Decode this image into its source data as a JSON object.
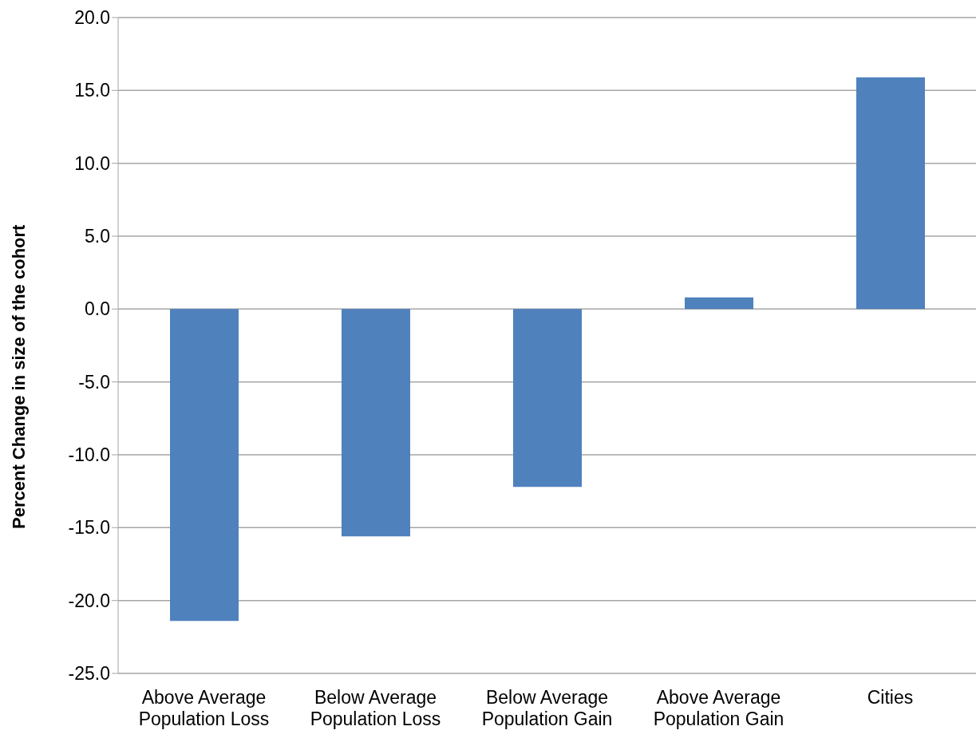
{
  "chart_data": {
    "type": "bar",
    "ylabel": "Percent Change in size of the cohort",
    "categories": [
      "Above Average Population Loss",
      "Below Average Population Loss",
      "Below Average Population Gain",
      "Above Average Population Gain",
      "Cities"
    ],
    "values": [
      -21.4,
      -15.6,
      -12.2,
      0.8,
      15.9
    ],
    "color": "#4f81bd",
    "ylim": [
      -25,
      20
    ],
    "yticks": [
      {
        "value": -25,
        "label": "-25.0"
      },
      {
        "value": -20,
        "label": "-20.0"
      },
      {
        "value": -15,
        "label": "-15.0"
      },
      {
        "value": -10,
        "label": "-10.0"
      },
      {
        "value": -5,
        "label": "-5.0"
      },
      {
        "value": 0,
        "label": "0.0"
      },
      {
        "value": 5,
        "label": "5.0"
      },
      {
        "value": 10,
        "label": "10.0"
      },
      {
        "value": 15,
        "label": "15.0"
      },
      {
        "value": 20,
        "label": "20.0"
      }
    ],
    "grid": "y"
  }
}
